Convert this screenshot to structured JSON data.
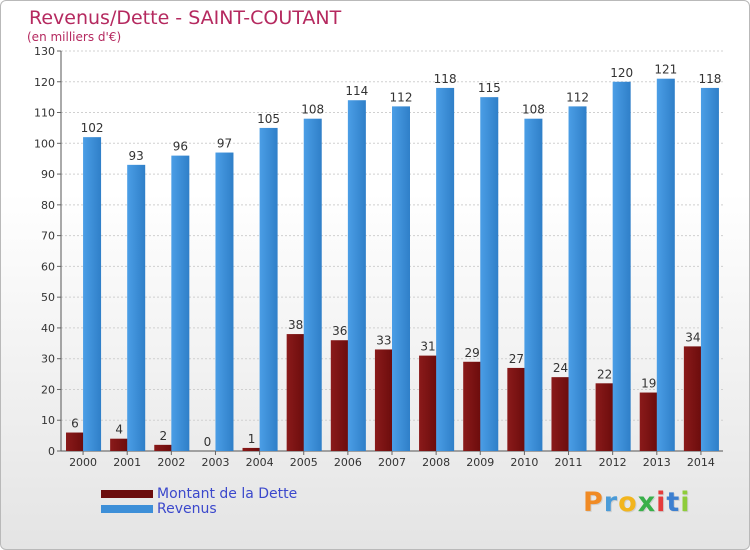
{
  "title": "Revenus/Dette - SAINT-COUTANT",
  "subtitle": "(en milliers d'€)",
  "logo_text": "Proxiti",
  "colors": {
    "title": "#b5295f",
    "legend_text": "#3b48cc",
    "dette": "#6b0c0c",
    "revenus": "#3d8fd8"
  },
  "chart_data": {
    "type": "bar",
    "title": "Revenus/Dette - SAINT-COUTANT",
    "subtitle": "(en milliers d'€)",
    "categories": [
      "2000",
      "2001",
      "2002",
      "2003",
      "2004",
      "2005",
      "2006",
      "2007",
      "2008",
      "2009",
      "2010",
      "2011",
      "2012",
      "2013",
      "2014"
    ],
    "series": [
      {
        "name": "Montant de la Dette",
        "color": "#6b0c0c",
        "values": [
          6,
          4,
          2,
          0,
          1,
          38,
          36,
          33,
          31,
          29,
          27,
          24,
          22,
          19,
          34
        ]
      },
      {
        "name": "Revenus",
        "color": "#3d8fd8",
        "values": [
          102,
          93,
          96,
          97,
          105,
          108,
          114,
          112,
          118,
          115,
          108,
          112,
          120,
          121,
          118
        ]
      }
    ],
    "ylim": [
      0,
      130
    ],
    "yticks": [
      0,
      10,
      20,
      30,
      40,
      50,
      60,
      70,
      80,
      90,
      100,
      110,
      120,
      130
    ],
    "grid": true,
    "legend_position": "bottom-left"
  }
}
